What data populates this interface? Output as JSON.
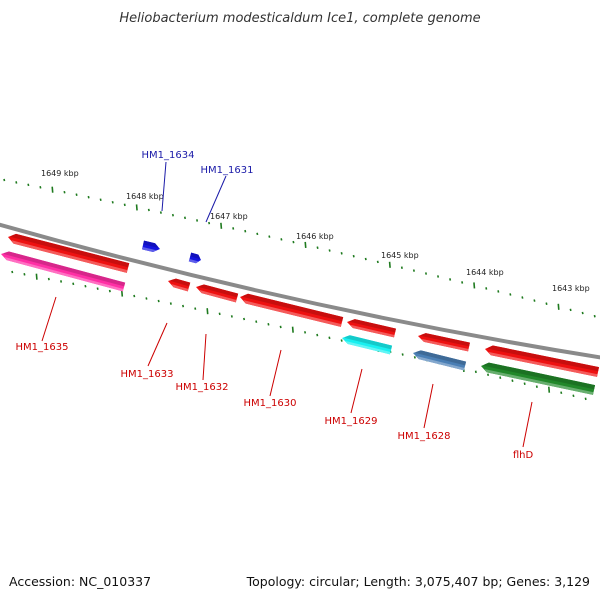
{
  "title": "Heliobacterium modesticaldum Ice1, complete genome",
  "footer": {
    "accession": "Accession: NC_010337",
    "summary": "Topology: circular; Length: 3,075,407 bp; Genes: 3,129"
  },
  "colors": {
    "backbone": "#8a8a8a",
    "tick": "#1e7a1e",
    "red": "#ee1111",
    "magenta": "#ff2fa5",
    "cyan": "#18f0f0",
    "steelblue": "#4a7fb5",
    "green": "#22882a",
    "blue": "#1414e0",
    "label_blue": "#1a1aa8",
    "label_red": "#cc0000"
  },
  "kbp_labels": [
    "1649 kbp",
    "1648 kbp",
    "1647 kbp",
    "1646 kbp",
    "1645 kbp",
    "1644 kbp",
    "1643 kbp"
  ],
  "genes": [
    {
      "label": "HM1_1635",
      "color": "red",
      "strand": "reverse"
    },
    {
      "label": "HM1_1635",
      "color": "magenta",
      "strand": "reverse"
    },
    {
      "label": "HM1_1634",
      "color": "blue",
      "strand": "forward"
    },
    {
      "label": "HM1_1631",
      "color": "blue",
      "strand": "forward"
    },
    {
      "label": "HM1_1633",
      "color": "red",
      "strand": "reverse"
    },
    {
      "label": "HM1_1632",
      "color": "red",
      "strand": "reverse"
    },
    {
      "label": "HM1_1630",
      "color": "red",
      "strand": "reverse"
    },
    {
      "label": "HM1_1629",
      "color": "red",
      "strand": "reverse"
    },
    {
      "label": "HM1_1629",
      "color": "cyan",
      "strand": "reverse"
    },
    {
      "label": "HM1_1628",
      "color": "red",
      "strand": "reverse"
    },
    {
      "label": "HM1_1628",
      "color": "steelblue",
      "strand": "reverse"
    },
    {
      "label": "flhD",
      "color": "red",
      "strand": "reverse"
    },
    {
      "label": "flhD",
      "color": "green",
      "strand": "reverse"
    }
  ],
  "callouts": [
    {
      "label": "HM1_1634",
      "color": "label_blue"
    },
    {
      "label": "HM1_1631",
      "color": "label_blue"
    },
    {
      "label": "HM1_1635",
      "color": "label_red"
    },
    {
      "label": "HM1_1633",
      "color": "label_red"
    },
    {
      "label": "HM1_1632",
      "color": "label_red"
    },
    {
      "label": "HM1_1630",
      "color": "label_red"
    },
    {
      "label": "HM1_1629",
      "color": "label_red"
    },
    {
      "label": "HM1_1628",
      "color": "label_red"
    },
    {
      "label": "flhD",
      "color": "label_red"
    }
  ]
}
